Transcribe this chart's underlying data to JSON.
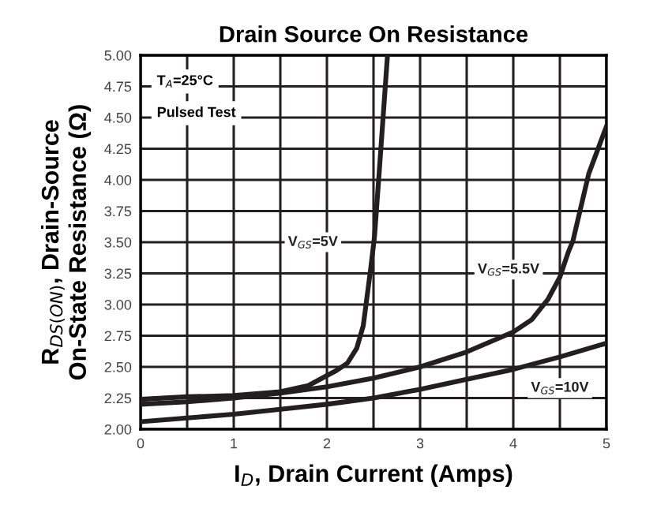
{
  "chart_data": {
    "type": "line",
    "title": "Drain Source On Resistance",
    "xlabel": "I$_{D}$, Drain Current (Amps)",
    "ylabel": "R$_{DS(ON)}$, Drain-Source\nOn-State Resistance (Ω)",
    "annotations": [
      "T$_{A}$=25°C",
      "Pulsed Test"
    ],
    "series": [
      {
        "name": "V$_{GS}$=5V",
        "color": "#231f20",
        "x": [
          0,
          0.5,
          1,
          1.5,
          1.8,
          2.0,
          2.1,
          2.22,
          2.32,
          2.39,
          2.47,
          2.51,
          2.56,
          2.65
        ],
        "values": [
          2.24,
          2.26,
          2.27,
          2.3,
          2.35,
          2.43,
          2.47,
          2.53,
          2.65,
          2.83,
          3.29,
          3.54,
          4.05,
          5.0
        ]
      },
      {
        "name": "V$_{GS}$=5.5V",
        "color": "#231f20",
        "x": [
          0,
          0.5,
          1,
          1.5,
          2,
          2.5,
          3,
          3.5,
          4.0,
          4.2,
          4.37,
          4.5,
          4.59,
          4.64,
          4.81,
          5.0
        ],
        "values": [
          2.2,
          2.22,
          2.25,
          2.29,
          2.34,
          2.41,
          2.5,
          2.62,
          2.78,
          2.88,
          3.04,
          3.22,
          3.42,
          3.51,
          4.05,
          4.43
        ]
      },
      {
        "name": "V$_{GS}$=10V",
        "color": "#231f20",
        "x": [
          0,
          0.5,
          1,
          1.5,
          2,
          2.5,
          3,
          3.5,
          4,
          4.5,
          5
        ],
        "values": [
          2.06,
          2.09,
          2.12,
          2.16,
          2.2,
          2.25,
          2.32,
          2.4,
          2.48,
          2.58,
          2.69
        ]
      }
    ],
    "xlim": [
      0,
      5
    ],
    "ylim": [
      2.0,
      5.0
    ],
    "xticks": [
      0,
      {
        "value": 0.5,
        "label": null
      },
      1,
      {
        "value": 1.5,
        "label": null
      },
      2,
      {
        "value": 2.5,
        "label": null
      },
      3,
      {
        "value": 3.5,
        "label": null
      },
      4,
      {
        "value": 4.5,
        "label": null
      },
      5
    ],
    "yticks": [
      {
        "value": 2.0,
        "label": "2.00"
      },
      {
        "value": 2.25,
        "label": "2.25"
      },
      {
        "value": 2.5,
        "label": "2.50"
      },
      {
        "value": 2.75,
        "label": "2.75"
      },
      {
        "value": 3.0,
        "label": "3.00"
      },
      {
        "value": 3.25,
        "label": "3.25"
      },
      {
        "value": 3.5,
        "label": "3.50"
      },
      {
        "value": 3.75,
        "label": "3.75"
      },
      {
        "value": 4.0,
        "label": "4.00"
      },
      {
        "value": 4.25,
        "label": "4.25"
      },
      {
        "value": 4.5,
        "label": "4.50"
      },
      {
        "value": 4.75,
        "label": "4.75"
      },
      {
        "value": 5.0,
        "label": "5.00"
      }
    ],
    "grid": true,
    "legend": false,
    "marker": "none",
    "line_style": "solid"
  }
}
